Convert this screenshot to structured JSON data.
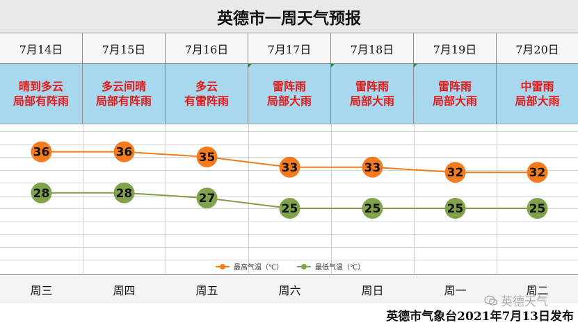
{
  "title": "英德市一周天气预报",
  "days": [
    {
      "date": "7月14日",
      "cond1": "晴到多云",
      "cond2": "局部有阵雨",
      "weekday": "周三"
    },
    {
      "date": "7月15日",
      "cond1": "多云间晴",
      "cond2": "局部有阵雨",
      "weekday": "周四"
    },
    {
      "date": "7月16日",
      "cond1": "多云",
      "cond2": "有雷阵雨",
      "weekday": "周五"
    },
    {
      "date": "7月17日",
      "cond1": "雷阵雨",
      "cond2": "局部大雨",
      "weekday": "周六"
    },
    {
      "date": "7月18日",
      "cond1": "雷阵雨",
      "cond2": "局部大雨",
      "weekday": "周日"
    },
    {
      "date": "7月19日",
      "cond1": "雷阵雨",
      "cond2": "局部大雨",
      "weekday": "周一"
    },
    {
      "date": "7月20日",
      "cond1": "中雷雨",
      "cond2": "局部大雨",
      "weekday": "周二"
    }
  ],
  "chart_data": {
    "type": "line",
    "categories": [
      "周三",
      "周四",
      "周五",
      "周六",
      "周日",
      "周一",
      "周二"
    ],
    "series": [
      {
        "name": "最高气温（℃）",
        "values": [
          36,
          36,
          35,
          33,
          33,
          32,
          32
        ],
        "color": "#f07a1c",
        "marker": "#f57b1f"
      },
      {
        "name": "最低气温（℃）",
        "values": [
          28,
          28,
          27,
          25,
          25,
          25,
          25
        ],
        "color": "#7e9c48",
        "marker": "#7fa24a"
      }
    ],
    "ylim": [
      15,
      40
    ],
    "grid": true,
    "legend": "bottom"
  },
  "watermark": "英德天气",
  "footer": "英德市气象台2021年7月13日发布",
  "colors": {
    "condition_text": "#e41a1a",
    "condition_bg": "#a8d8ee",
    "high_line": "#f07a1c",
    "low_line": "#7e9c48"
  }
}
